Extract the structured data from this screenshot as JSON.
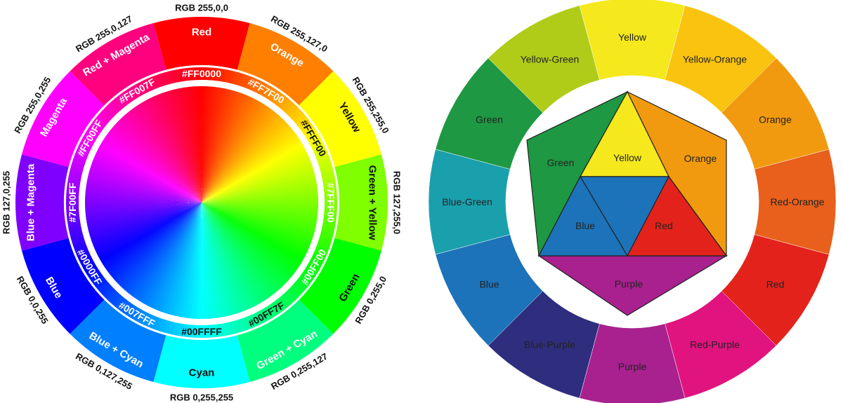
{
  "left_wheel": {
    "segments": [
      {
        "name": "Red",
        "rgb": "RGB 255,0,0",
        "hex": "#FF0000",
        "color": "#ff0000",
        "name_dark": false,
        "hex_dark": false
      },
      {
        "name": "Orange",
        "rgb": "RGB 255,127,0",
        "hex": "#FF7F00",
        "color": "#ff7f00",
        "name_dark": false,
        "hex_dark": false
      },
      {
        "name": "Yellow",
        "rgb": "RGB 255,255,0",
        "hex": "#FFFF00",
        "color": "#ffff00",
        "name_dark": true,
        "hex_dark": true
      },
      {
        "name": "Green + Yellow",
        "rgb": "RGB 127,255,0",
        "hex": "#7FFF00",
        "color": "#7fff00",
        "name_dark": true,
        "hex_dark": false
      },
      {
        "name": "Green",
        "rgb": "RGB 0,255,0",
        "hex": "#00FF00",
        "color": "#00ff00",
        "name_dark": true,
        "hex_dark": false
      },
      {
        "name": "Green + Cyan",
        "rgb": "RGB 0,255,127",
        "hex": "#00FF7F",
        "color": "#00ff7f",
        "name_dark": false,
        "hex_dark": true
      },
      {
        "name": "Cyan",
        "rgb": "RGB 0,255,255",
        "hex": "#00FFFF",
        "color": "#00ffff",
        "name_dark": true,
        "hex_dark": true
      },
      {
        "name": "Blue + Cyan",
        "rgb": "RGB 0,127,255",
        "hex": "#007FFF",
        "color": "#007fff",
        "name_dark": false,
        "hex_dark": false
      },
      {
        "name": "Blue",
        "rgb": "RGB 0,0,255",
        "hex": "#0000FF",
        "color": "#0000ff",
        "name_dark": false,
        "hex_dark": false
      },
      {
        "name": "Blue + Magenta",
        "rgb": "RGB 127,0,255",
        "hex": "#7F00FF",
        "color": "#7f00ff",
        "name_dark": false,
        "hex_dark": false
      },
      {
        "name": "Magenta",
        "rgb": "RGB 255,0,255",
        "hex": "#FF00FF",
        "color": "#ff00ff",
        "name_dark": false,
        "hex_dark": false
      },
      {
        "name": "Red + Magenta",
        "rgb": "RGB 255,0,127",
        "hex": "#FF007F",
        "color": "#ff007f",
        "name_dark": false,
        "hex_dark": false
      }
    ]
  },
  "right_wheel": {
    "outer_segments": [
      {
        "name": "Yellow",
        "color": "#f5e81c"
      },
      {
        "name": "Yellow-Orange",
        "color": "#f9c30f"
      },
      {
        "name": "Orange",
        "color": "#f29a0f"
      },
      {
        "name": "Red-Orange",
        "color": "#e8601c"
      },
      {
        "name": "Red",
        "color": "#e3231b"
      },
      {
        "name": "Red-Purple",
        "color": "#e0137f"
      },
      {
        "name": "Purple",
        "color": "#a8218f"
      },
      {
        "name": "Blue-Purple",
        "color": "#2f2d7e"
      },
      {
        "name": "Blue",
        "color": "#1c73b9"
      },
      {
        "name": "Blue-Green",
        "color": "#1aa0ad"
      },
      {
        "name": "Green",
        "color": "#1e9843"
      },
      {
        "name": "Yellow-Green",
        "color": "#b0cc18"
      }
    ],
    "inner": {
      "yellow": {
        "name": "Yellow",
        "color": "#f5e81c"
      },
      "blue": {
        "name": "Blue",
        "color": "#1c73b9"
      },
      "red": {
        "name": "Red",
        "color": "#e3231b"
      },
      "green": {
        "name": "Green",
        "color": "#1e9843"
      },
      "orange": {
        "name": "Orange",
        "color": "#f29a0f"
      },
      "purple": {
        "name": "Purple",
        "color": "#a8218f"
      }
    }
  }
}
